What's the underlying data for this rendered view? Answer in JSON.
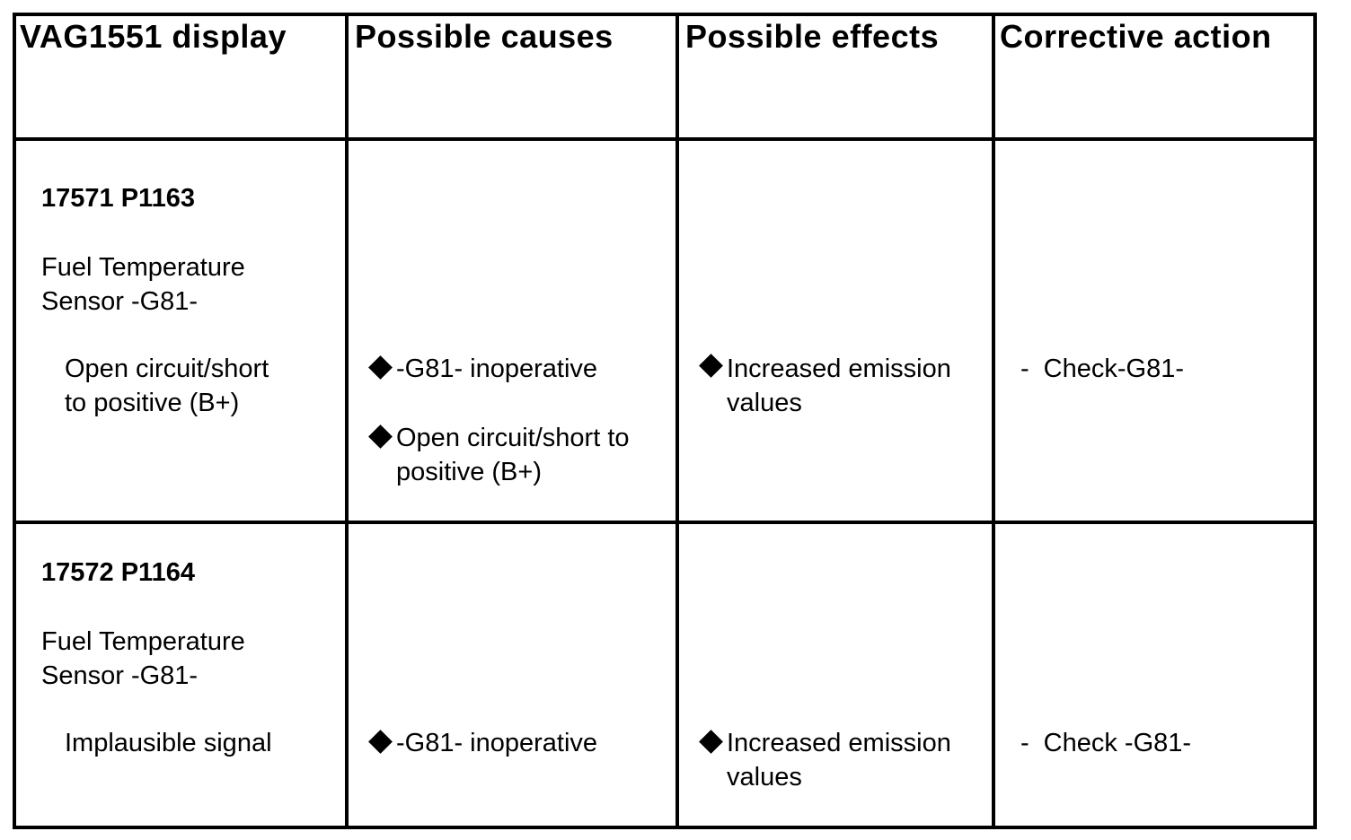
{
  "headers": [
    "VAG1551 display",
    "Possible causes",
    "Possible effects",
    "Corrective action"
  ],
  "rows": [
    {
      "code": "17571 P1163",
      "component_line1": "Fuel Temperature",
      "component_line2": "Sensor -G81-",
      "condition_line1": "Open circuit/short",
      "condition_line2": "to positive (B+)",
      "causes": [
        {
          "line1": "-G81- inoperative"
        },
        {
          "line1": "Open circuit/short to",
          "line2": "positive (B+)"
        }
      ],
      "effect": {
        "line1": "Increased emission",
        "line2": "values"
      },
      "action": "Check-G81-"
    },
    {
      "code": "17572 P1164",
      "component_line1": "Fuel Temperature",
      "component_line2": "Sensor -G81-",
      "condition_line1": "Implausible signal",
      "causes": [
        {
          "line1": "-G81- inoperative"
        }
      ],
      "effect": {
        "line1": "Increased emission",
        "line2": "values"
      },
      "action": "Check -G81-"
    }
  ],
  "icons": {
    "bullet": "diamond-bullet-icon",
    "dash": "dash-icon"
  }
}
